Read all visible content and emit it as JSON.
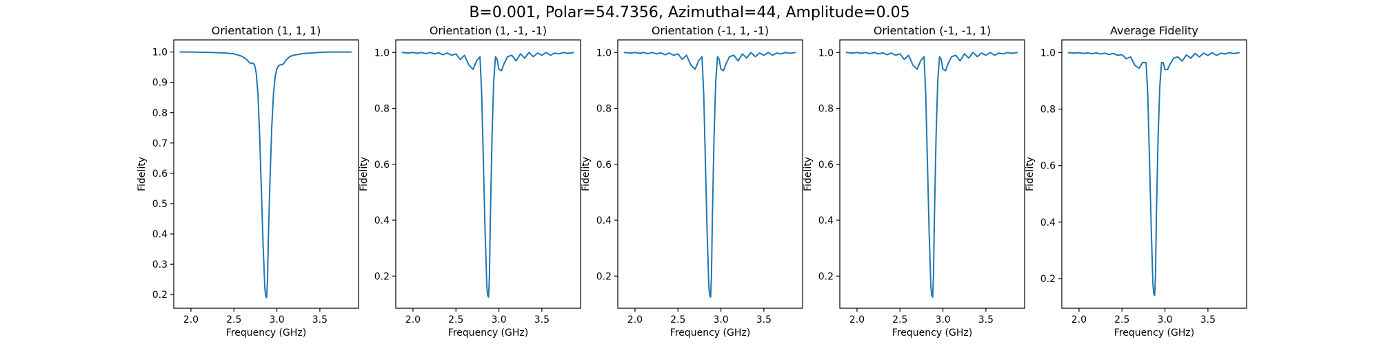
{
  "figure": {
    "suptitle": "B=0.001, Polar=54.7356, Azimuthal=44, Amplitude=0.05"
  },
  "colors": {
    "line": "#1f77b4",
    "axes": "#000000",
    "background": "#ffffff"
  },
  "chart_data": [
    {
      "type": "line",
      "title": "Orientation (1, 1, 1)",
      "xlabel": "Frequency (GHz)",
      "ylabel": "Fidelity",
      "xlim": [
        1.8,
        3.95
      ],
      "ylim": [
        0.155,
        1.04
      ],
      "xticks": [
        2.0,
        2.5,
        3.0,
        3.5
      ],
      "xtick_labels": [
        "2.0",
        "2.5",
        "3.0",
        "3.5"
      ],
      "yticks": [
        0.2,
        0.3,
        0.4,
        0.5,
        0.6,
        0.7,
        0.8,
        0.9,
        1.0
      ],
      "ytick_labels": [
        "0.2",
        "0.3",
        "0.4",
        "0.5",
        "0.6",
        "0.7",
        "0.8",
        "0.9",
        "1.0"
      ],
      "grid": false,
      "x": [
        1.87,
        2.0,
        2.2,
        2.4,
        2.5,
        2.55,
        2.6,
        2.65,
        2.68,
        2.7,
        2.72,
        2.74,
        2.76,
        2.78,
        2.8,
        2.82,
        2.84,
        2.86,
        2.87,
        2.88,
        2.89,
        2.9,
        2.92,
        2.94,
        2.96,
        2.98,
        3.0,
        3.02,
        3.04,
        3.06,
        3.08,
        3.1,
        3.15,
        3.2,
        3.25,
        3.3,
        3.4,
        3.5,
        3.6,
        3.7,
        3.87
      ],
      "y": [
        1.0,
        1.0,
        0.999,
        0.997,
        0.994,
        0.99,
        0.985,
        0.975,
        0.965,
        0.962,
        0.964,
        0.958,
        0.93,
        0.86,
        0.72,
        0.54,
        0.36,
        0.22,
        0.195,
        0.19,
        0.24,
        0.38,
        0.58,
        0.75,
        0.86,
        0.92,
        0.945,
        0.955,
        0.958,
        0.958,
        0.962,
        0.972,
        0.985,
        0.99,
        0.992,
        0.995,
        0.997,
        0.999,
        1.0,
        1.0,
        1.0
      ]
    },
    {
      "type": "line",
      "title": "Orientation (1, -1, -1)",
      "xlabel": "Frequency (GHz)",
      "ylabel": "Fidelity",
      "xlim": [
        1.8,
        3.95
      ],
      "ylim": [
        0.085,
        1.045
      ],
      "xticks": [
        2.0,
        2.5,
        3.0,
        3.5
      ],
      "xtick_labels": [
        "2.0",
        "2.5",
        "3.0",
        "3.5"
      ],
      "yticks": [
        0.2,
        0.4,
        0.6,
        0.8,
        1.0
      ],
      "ytick_labels": [
        "0.2",
        "0.4",
        "0.6",
        "0.8",
        "1.0"
      ],
      "grid": false,
      "x": [
        1.87,
        1.95,
        2.0,
        2.05,
        2.1,
        2.15,
        2.2,
        2.25,
        2.3,
        2.35,
        2.4,
        2.45,
        2.5,
        2.55,
        2.6,
        2.65,
        2.7,
        2.74,
        2.78,
        2.8,
        2.82,
        2.84,
        2.86,
        2.87,
        2.88,
        2.89,
        2.9,
        2.92,
        2.94,
        2.96,
        2.98,
        3.0,
        3.03,
        3.06,
        3.1,
        3.15,
        3.2,
        3.25,
        3.3,
        3.35,
        3.4,
        3.45,
        3.5,
        3.55,
        3.6,
        3.65,
        3.7,
        3.75,
        3.8,
        3.87
      ],
      "y": [
        1.0,
        0.998,
        1.0,
        0.997,
        1.0,
        0.996,
        1.0,
        0.995,
        0.999,
        0.992,
        0.998,
        0.99,
        0.995,
        0.975,
        0.99,
        0.955,
        0.94,
        0.97,
        0.985,
        0.85,
        0.6,
        0.35,
        0.16,
        0.13,
        0.125,
        0.2,
        0.4,
        0.7,
        0.9,
        0.985,
        0.975,
        0.94,
        0.935,
        0.96,
        0.985,
        0.99,
        0.97,
        0.995,
        0.98,
        1.0,
        0.985,
        0.998,
        0.99,
        1.0,
        0.99,
        0.998,
        0.995,
        1.0,
        0.997,
        1.0
      ]
    },
    {
      "type": "line",
      "title": "Orientation (-1, 1, -1)",
      "xlabel": "Frequency (GHz)",
      "ylabel": "Fidelity",
      "xlim": [
        1.8,
        3.95
      ],
      "ylim": [
        0.085,
        1.045
      ],
      "xticks": [
        2.0,
        2.5,
        3.0,
        3.5
      ],
      "xtick_labels": [
        "2.0",
        "2.5",
        "3.0",
        "3.5"
      ],
      "yticks": [
        0.2,
        0.4,
        0.6,
        0.8,
        1.0
      ],
      "ytick_labels": [
        "0.2",
        "0.4",
        "0.6",
        "0.8",
        "1.0"
      ],
      "grid": false,
      "x": [
        1.87,
        1.95,
        2.0,
        2.05,
        2.1,
        2.15,
        2.2,
        2.25,
        2.3,
        2.35,
        2.4,
        2.45,
        2.5,
        2.55,
        2.6,
        2.65,
        2.7,
        2.74,
        2.78,
        2.8,
        2.82,
        2.84,
        2.86,
        2.87,
        2.88,
        2.89,
        2.9,
        2.92,
        2.94,
        2.96,
        2.98,
        3.0,
        3.03,
        3.06,
        3.1,
        3.15,
        3.2,
        3.25,
        3.3,
        3.35,
        3.4,
        3.45,
        3.5,
        3.55,
        3.6,
        3.65,
        3.7,
        3.75,
        3.8,
        3.87
      ],
      "y": [
        1.0,
        0.998,
        1.0,
        0.997,
        1.0,
        0.996,
        1.0,
        0.995,
        0.999,
        0.992,
        0.998,
        0.99,
        0.995,
        0.975,
        0.99,
        0.955,
        0.94,
        0.97,
        0.985,
        0.85,
        0.6,
        0.35,
        0.16,
        0.13,
        0.125,
        0.2,
        0.4,
        0.7,
        0.9,
        0.985,
        0.975,
        0.94,
        0.935,
        0.96,
        0.985,
        0.99,
        0.97,
        0.995,
        0.98,
        1.0,
        0.985,
        0.998,
        0.99,
        1.0,
        0.99,
        0.998,
        0.995,
        1.0,
        0.997,
        1.0
      ]
    },
    {
      "type": "line",
      "title": "Orientation (-1, -1, 1)",
      "xlabel": "Frequency (GHz)",
      "ylabel": "Fidelity",
      "xlim": [
        1.8,
        3.95
      ],
      "ylim": [
        0.085,
        1.045
      ],
      "xticks": [
        2.0,
        2.5,
        3.0,
        3.5
      ],
      "xtick_labels": [
        "2.0",
        "2.5",
        "3.0",
        "3.5"
      ],
      "yticks": [
        0.2,
        0.4,
        0.6,
        0.8,
        1.0
      ],
      "ytick_labels": [
        "0.2",
        "0.4",
        "0.6",
        "0.8",
        "1.0"
      ],
      "grid": false,
      "x": [
        1.87,
        1.95,
        2.0,
        2.05,
        2.1,
        2.15,
        2.2,
        2.25,
        2.3,
        2.35,
        2.4,
        2.45,
        2.5,
        2.55,
        2.6,
        2.65,
        2.7,
        2.74,
        2.78,
        2.8,
        2.82,
        2.84,
        2.86,
        2.87,
        2.88,
        2.89,
        2.9,
        2.92,
        2.94,
        2.96,
        2.98,
        3.0,
        3.03,
        3.06,
        3.1,
        3.15,
        3.2,
        3.25,
        3.3,
        3.35,
        3.4,
        3.45,
        3.5,
        3.55,
        3.6,
        3.65,
        3.7,
        3.75,
        3.8,
        3.87
      ],
      "y": [
        1.0,
        0.998,
        1.0,
        0.997,
        1.0,
        0.996,
        1.0,
        0.995,
        0.999,
        0.992,
        0.998,
        0.99,
        0.995,
        0.975,
        0.99,
        0.955,
        0.94,
        0.97,
        0.985,
        0.85,
        0.6,
        0.35,
        0.16,
        0.13,
        0.125,
        0.2,
        0.4,
        0.7,
        0.9,
        0.985,
        0.975,
        0.94,
        0.935,
        0.96,
        0.985,
        0.99,
        0.97,
        0.995,
        0.98,
        1.0,
        0.985,
        0.998,
        0.99,
        1.0,
        0.99,
        0.998,
        0.995,
        1.0,
        0.997,
        1.0
      ]
    },
    {
      "type": "line",
      "title": "Average Fidelity",
      "xlabel": "Frequency (GHz)",
      "ylabel": "Fidelity",
      "xlim": [
        1.8,
        3.95
      ],
      "ylim": [
        0.095,
        1.045
      ],
      "xticks": [
        2.0,
        2.5,
        3.0,
        3.5
      ],
      "xtick_labels": [
        "2.0",
        "2.5",
        "3.0",
        "3.5"
      ],
      "yticks": [
        0.2,
        0.4,
        0.6,
        0.8,
        1.0
      ],
      "ytick_labels": [
        "0.2",
        "0.4",
        "0.6",
        "0.8",
        "1.0"
      ],
      "grid": false,
      "x": [
        1.87,
        1.95,
        2.0,
        2.05,
        2.1,
        2.15,
        2.2,
        2.25,
        2.3,
        2.35,
        2.4,
        2.45,
        2.5,
        2.55,
        2.6,
        2.65,
        2.7,
        2.74,
        2.78,
        2.8,
        2.82,
        2.84,
        2.86,
        2.87,
        2.88,
        2.89,
        2.9,
        2.92,
        2.94,
        2.96,
        2.98,
        3.0,
        3.03,
        3.06,
        3.1,
        3.15,
        3.2,
        3.25,
        3.3,
        3.35,
        3.4,
        3.45,
        3.5,
        3.55,
        3.6,
        3.65,
        3.7,
        3.75,
        3.8,
        3.87
      ],
      "y": [
        1.0,
        0.998,
        1.0,
        0.997,
        0.999,
        0.996,
        0.999,
        0.995,
        0.998,
        0.993,
        0.997,
        0.99,
        0.993,
        0.978,
        0.985,
        0.955,
        0.945,
        0.965,
        0.965,
        0.85,
        0.62,
        0.38,
        0.18,
        0.145,
        0.14,
        0.21,
        0.42,
        0.7,
        0.88,
        0.965,
        0.965,
        0.94,
        0.94,
        0.96,
        0.98,
        0.985,
        0.97,
        0.992,
        0.98,
        0.997,
        0.985,
        0.998,
        0.99,
        1.0,
        0.99,
        0.998,
        0.995,
        1.0,
        0.997,
        1.0
      ]
    }
  ]
}
